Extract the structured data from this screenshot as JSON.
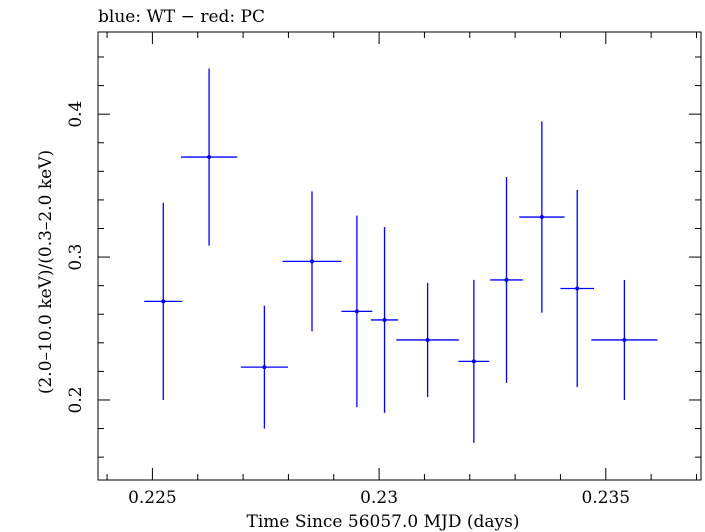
{
  "chart_data": {
    "type": "scatter",
    "title": "blue: WT − red: PC",
    "xlabel": "Time Since 56057.0 MJD (days)",
    "ylabel": "(2.0–10.0 keV)/(0.3–2.0 keV)",
    "xlim": [
      0.2238,
      0.2371
    ],
    "ylim": [
      0.144,
      0.4575
    ],
    "x_ticks": [
      {
        "value": 0.225,
        "label": "0.225"
      },
      {
        "value": 0.23,
        "label": "0.23"
      },
      {
        "value": 0.235,
        "label": "0.235"
      }
    ],
    "y_ticks": [
      {
        "value": 0.2,
        "label": "0.2"
      },
      {
        "value": 0.3,
        "label": "0.3"
      },
      {
        "value": 0.4,
        "label": "0.4"
      }
    ],
    "x_minor_step": 0.001,
    "y_minor_step": 0.02,
    "grid": false,
    "series": [
      {
        "color": "#0000ff",
        "points": [
          {
            "x": 0.22524,
            "xerr": 0.00042,
            "y": 0.269,
            "yerr": 0.069
          },
          {
            "x": 0.22625,
            "xerr": 0.00062,
            "y": 0.37,
            "yerr": 0.062
          },
          {
            "x": 0.22747,
            "xerr": 0.00052,
            "y": 0.223,
            "yerr": 0.043
          },
          {
            "x": 0.22852,
            "xerr": 0.00065,
            "y": 0.297,
            "yerr": 0.049
          },
          {
            "x": 0.22951,
            "xerr": 0.00034,
            "y": 0.262,
            "yerr": 0.067
          },
          {
            "x": 0.23012,
            "xerr": 0.0003,
            "y": 0.256,
            "yerr": 0.065
          },
          {
            "x": 0.23107,
            "xerr": 0.00069,
            "y": 0.242,
            "yerr": 0.04
          },
          {
            "x": 0.23209,
            "xerr": 0.00034,
            "y": 0.227,
            "yerr": 0.057
          },
          {
            "x": 0.23281,
            "xerr": 0.00036,
            "y": 0.284,
            "yerr": 0.072
          },
          {
            "x": 0.23359,
            "xerr": 0.0005,
            "y": 0.328,
            "yerr": 0.067
          },
          {
            "x": 0.23437,
            "xerr": 0.00037,
            "y": 0.278,
            "yerr": 0.069
          },
          {
            "x": 0.23541,
            "xerr": 0.00073,
            "y": 0.242,
            "yerr": 0.042
          }
        ]
      }
    ]
  }
}
